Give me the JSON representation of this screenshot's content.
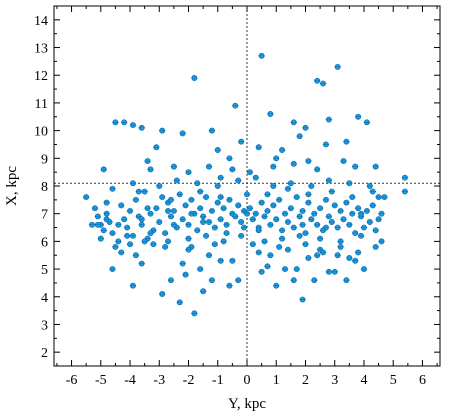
{
  "chart_data": {
    "type": "scatter",
    "xlabel": "Y, kpc",
    "ylabel": "X, kpc",
    "xlim": [
      -6.6,
      6.6
    ],
    "ylim": [
      1.5,
      14.5
    ],
    "xticks": [
      -6,
      -5,
      -4,
      -3,
      -2,
      -1,
      0,
      1,
      2,
      3,
      4,
      5,
      6
    ],
    "yticks": [
      2,
      3,
      4,
      5,
      6,
      7,
      8,
      9,
      10,
      11,
      12,
      13,
      14
    ],
    "reference_lines": {
      "x": 0,
      "y": 8.1
    },
    "grid": false,
    "marker_color": "#1e9be0",
    "series": [
      {
        "points": [
          [
            -5.5,
            7.6
          ],
          [
            -5.2,
            7.2
          ],
          [
            -5.1,
            6.9
          ],
          [
            -5.0,
            6.6
          ],
          [
            -4.9,
            6.4
          ],
          [
            -4.8,
            7.0
          ],
          [
            -4.7,
            6.7
          ],
          [
            -4.6,
            6.3
          ],
          [
            -4.5,
            5.8
          ],
          [
            -4.3,
            7.3
          ],
          [
            -4.2,
            6.8
          ],
          [
            -4.1,
            6.5
          ],
          [
            -4.0,
            7.1
          ],
          [
            -3.9,
            6.2
          ],
          [
            -3.8,
            7.5
          ],
          [
            -3.7,
            6.9
          ],
          [
            -3.6,
            6.6
          ],
          [
            -3.5,
            7.8
          ],
          [
            -3.4,
            6.1
          ],
          [
            -3.3,
            7.0
          ],
          [
            -3.2,
            6.4
          ],
          [
            -3.1,
            7.2
          ],
          [
            -3.0,
            6.7
          ],
          [
            -2.9,
            7.6
          ],
          [
            -2.8,
            6.3
          ],
          [
            -2.7,
            7.4
          ],
          [
            -2.6,
            6.9
          ],
          [
            -2.5,
            7.1
          ],
          [
            -2.4,
            6.5
          ],
          [
            -2.3,
            7.7
          ],
          [
            -2.2,
            6.8
          ],
          [
            -2.1,
            7.3
          ],
          [
            -2.0,
            6.6
          ],
          [
            -1.9,
            7.5
          ],
          [
            -1.8,
            7.0
          ],
          [
            -1.7,
            6.4
          ],
          [
            -1.6,
            7.2
          ],
          [
            -1.5,
            6.9
          ],
          [
            -1.4,
            7.6
          ],
          [
            -1.3,
            6.7
          ],
          [
            -1.2,
            7.1
          ],
          [
            -1.1,
            6.5
          ],
          [
            -1.0,
            7.4
          ],
          [
            -0.9,
            6.8
          ],
          [
            -0.8,
            7.2
          ],
          [
            -0.7,
            6.6
          ],
          [
            -0.6,
            7.5
          ],
          [
            -0.5,
            7.0
          ],
          [
            -0.4,
            6.9
          ],
          [
            -0.3,
            7.3
          ],
          [
            -0.2,
            6.7
          ],
          [
            -0.1,
            7.1
          ],
          [
            0.1,
            7.2
          ],
          [
            0.2,
            6.8
          ],
          [
            0.3,
            7.0
          ],
          [
            0.4,
            6.5
          ],
          [
            0.5,
            7.4
          ],
          [
            0.6,
            6.9
          ],
          [
            0.7,
            7.1
          ],
          [
            0.8,
            6.6
          ],
          [
            0.9,
            7.3
          ],
          [
            1.0,
            6.8
          ],
          [
            1.1,
            7.5
          ],
          [
            1.2,
            6.4
          ],
          [
            1.3,
            7.0
          ],
          [
            1.4,
            6.7
          ],
          [
            1.5,
            7.2
          ],
          [
            1.6,
            6.5
          ],
          [
            1.7,
            7.6
          ],
          [
            1.8,
            6.9
          ],
          [
            1.9,
            7.1
          ],
          [
            2.0,
            6.3
          ],
          [
            2.1,
            7.4
          ],
          [
            2.2,
            6.8
          ],
          [
            2.3,
            7.0
          ],
          [
            2.4,
            6.6
          ],
          [
            2.5,
            7.2
          ],
          [
            2.6,
            6.4
          ],
          [
            2.7,
            7.5
          ],
          [
            2.8,
            6.9
          ],
          [
            2.9,
            6.7
          ],
          [
            3.0,
            7.3
          ],
          [
            3.1,
            6.5
          ],
          [
            3.2,
            7.1
          ],
          [
            3.3,
            6.8
          ],
          [
            3.4,
            7.4
          ],
          [
            3.5,
            6.6
          ],
          [
            3.6,
            7.0
          ],
          [
            3.7,
            6.3
          ],
          [
            3.8,
            7.2
          ],
          [
            3.9,
            6.9
          ],
          [
            4.0,
            6.5
          ],
          [
            4.1,
            7.1
          ],
          [
            4.2,
            6.7
          ],
          [
            4.3,
            7.3
          ],
          [
            4.4,
            6.4
          ],
          [
            4.5,
            6.8
          ],
          [
            4.6,
            7.0
          ],
          [
            -4.9,
            8.6
          ],
          [
            -4.5,
            10.3
          ],
          [
            -4.2,
            10.3
          ],
          [
            -3.9,
            10.2
          ],
          [
            -3.6,
            10.1
          ],
          [
            -3.4,
            8.9
          ],
          [
            -3.1,
            9.4
          ],
          [
            -2.9,
            10.0
          ],
          [
            -2.5,
            8.7
          ],
          [
            -2.2,
            9.9
          ],
          [
            -1.8,
            11.9
          ],
          [
            -1.2,
            10.0
          ],
          [
            -0.9,
            8.3
          ],
          [
            -0.6,
            9.0
          ],
          [
            -0.4,
            10.9
          ],
          [
            0.1,
            8.5
          ],
          [
            0.5,
            12.7
          ],
          [
            0.8,
            10.6
          ],
          [
            1.2,
            9.3
          ],
          [
            1.6,
            10.3
          ],
          [
            1.8,
            9.8
          ],
          [
            2.1,
            8.9
          ],
          [
            2.4,
            11.8
          ],
          [
            2.6,
            11.7
          ],
          [
            2.8,
            10.4
          ],
          [
            3.1,
            12.3
          ],
          [
            3.4,
            9.6
          ],
          [
            3.8,
            10.5
          ],
          [
            4.1,
            10.3
          ],
          [
            4.4,
            8.7
          ],
          [
            5.4,
            8.3
          ],
          [
            -4.6,
            5.0
          ],
          [
            -4.3,
            5.6
          ],
          [
            -3.9,
            4.4
          ],
          [
            -3.6,
            5.2
          ],
          [
            -3.2,
            5.9
          ],
          [
            -2.9,
            4.1
          ],
          [
            -2.6,
            4.6
          ],
          [
            -2.3,
            3.8
          ],
          [
            -2.1,
            4.8
          ],
          [
            -1.8,
            3.4
          ],
          [
            -1.5,
            4.2
          ],
          [
            -1.2,
            4.6
          ],
          [
            -0.9,
            5.3
          ],
          [
            -0.6,
            4.4
          ],
          [
            -0.3,
            4.6
          ],
          [
            0.4,
            5.6
          ],
          [
            0.7,
            5.1
          ],
          [
            1.0,
            4.4
          ],
          [
            1.3,
            5.0
          ],
          [
            1.6,
            4.6
          ],
          [
            1.9,
            3.9
          ],
          [
            2.1,
            5.4
          ],
          [
            2.5,
            5.7
          ],
          [
            2.8,
            4.9
          ],
          [
            3.1,
            5.5
          ],
          [
            3.4,
            4.6
          ],
          [
            3.7,
            5.3
          ],
          [
            4.0,
            5.0
          ],
          [
            4.4,
            5.8
          ],
          [
            4.6,
            6.0
          ],
          [
            -5.3,
            6.6
          ],
          [
            -5.0,
            6.1
          ],
          [
            -4.8,
            7.4
          ],
          [
            -4.4,
            6.0
          ],
          [
            -4.0,
            5.9
          ],
          [
            -3.7,
            7.8
          ],
          [
            -3.3,
            6.3
          ],
          [
            -3.0,
            8.0
          ],
          [
            -2.7,
            6.0
          ],
          [
            -2.4,
            8.2
          ],
          [
            -2.0,
            6.1
          ],
          [
            -1.7,
            8.1
          ],
          [
            -1.4,
            6.2
          ],
          [
            -1.0,
            8.0
          ],
          [
            -0.7,
            6.3
          ],
          [
            -0.3,
            8.2
          ],
          [
            0.0,
            7.7
          ],
          [
            0.3,
            8.3
          ],
          [
            0.6,
            6.0
          ],
          [
            0.9,
            8.0
          ],
          [
            1.2,
            6.1
          ],
          [
            1.5,
            8.1
          ],
          [
            1.8,
            6.2
          ],
          [
            2.2,
            8.0
          ],
          [
            2.5,
            6.1
          ],
          [
            2.8,
            8.2
          ],
          [
            3.2,
            6.0
          ],
          [
            3.5,
            8.1
          ],
          [
            3.9,
            6.2
          ],
          [
            4.2,
            8.0
          ],
          [
            4.5,
            7.6
          ],
          [
            4.7,
            7.6
          ],
          [
            5.4,
            7.8
          ],
          [
            -2.5,
            6.6
          ],
          [
            -1.9,
            5.8
          ],
          [
            -1.3,
            5.5
          ],
          [
            -0.8,
            6.0
          ],
          [
            -0.2,
            6.2
          ],
          [
            0.2,
            5.9
          ],
          [
            0.8,
            5.5
          ],
          [
            1.4,
            5.7
          ],
          [
            2.0,
            5.9
          ],
          [
            2.6,
            5.6
          ],
          [
            3.2,
            5.8
          ],
          [
            3.8,
            5.6
          ],
          [
            -3.8,
            5.5
          ],
          [
            -2.2,
            5.2
          ],
          [
            -1.6,
            5.0
          ],
          [
            -0.5,
            5.3
          ],
          [
            0.5,
            4.9
          ],
          [
            1.7,
            5.0
          ],
          [
            2.3,
            4.6
          ],
          [
            3.0,
            4.9
          ],
          [
            -1.0,
            9.3
          ],
          [
            -0.2,
            9.6
          ],
          [
            0.4,
            9.4
          ],
          [
            1.0,
            9.0
          ],
          [
            1.6,
            8.8
          ],
          [
            2.0,
            10.1
          ],
          [
            2.7,
            9.5
          ],
          [
            3.3,
            8.9
          ],
          [
            -3.3,
            8.6
          ],
          [
            -2.0,
            8.5
          ],
          [
            -1.3,
            8.7
          ],
          [
            -0.5,
            8.6
          ],
          [
            0.9,
            8.7
          ],
          [
            2.4,
            8.6
          ],
          [
            3.7,
            8.7
          ],
          [
            -4.6,
            7.9
          ],
          [
            -3.9,
            8.1
          ],
          [
            -3.4,
            7.2
          ],
          [
            -2.6,
            7.5
          ],
          [
            -1.6,
            7.8
          ],
          [
            -0.9,
            7.6
          ],
          [
            0.0,
            7.0
          ],
          [
            0.7,
            7.7
          ],
          [
            1.4,
            7.9
          ],
          [
            2.1,
            7.7
          ],
          [
            2.9,
            7.8
          ],
          [
            3.6,
            7.6
          ],
          [
            4.3,
            7.8
          ],
          [
            -4.1,
            6.2
          ],
          [
            -3.5,
            6.0
          ],
          [
            -2.8,
            5.8
          ],
          [
            -2.0,
            5.7
          ],
          [
            -1.1,
            5.9
          ],
          [
            1.1,
            5.8
          ],
          [
            2.4,
            5.5
          ],
          [
            3.5,
            5.4
          ],
          [
            -1.9,
            7.0
          ],
          [
            -1.5,
            6.7
          ],
          [
            -0.1,
            6.5
          ],
          [
            0.4,
            6.4
          ],
          [
            1.9,
            6.6
          ],
          [
            2.7,
            6.5
          ],
          [
            -2.7,
            7.1
          ],
          [
            -3.6,
            6.8
          ],
          [
            -4.4,
            6.6
          ],
          [
            -4.8,
            6.8
          ],
          [
            -5.1,
            6.6
          ],
          [
            3.9,
            7.0
          ]
        ]
      }
    ]
  }
}
